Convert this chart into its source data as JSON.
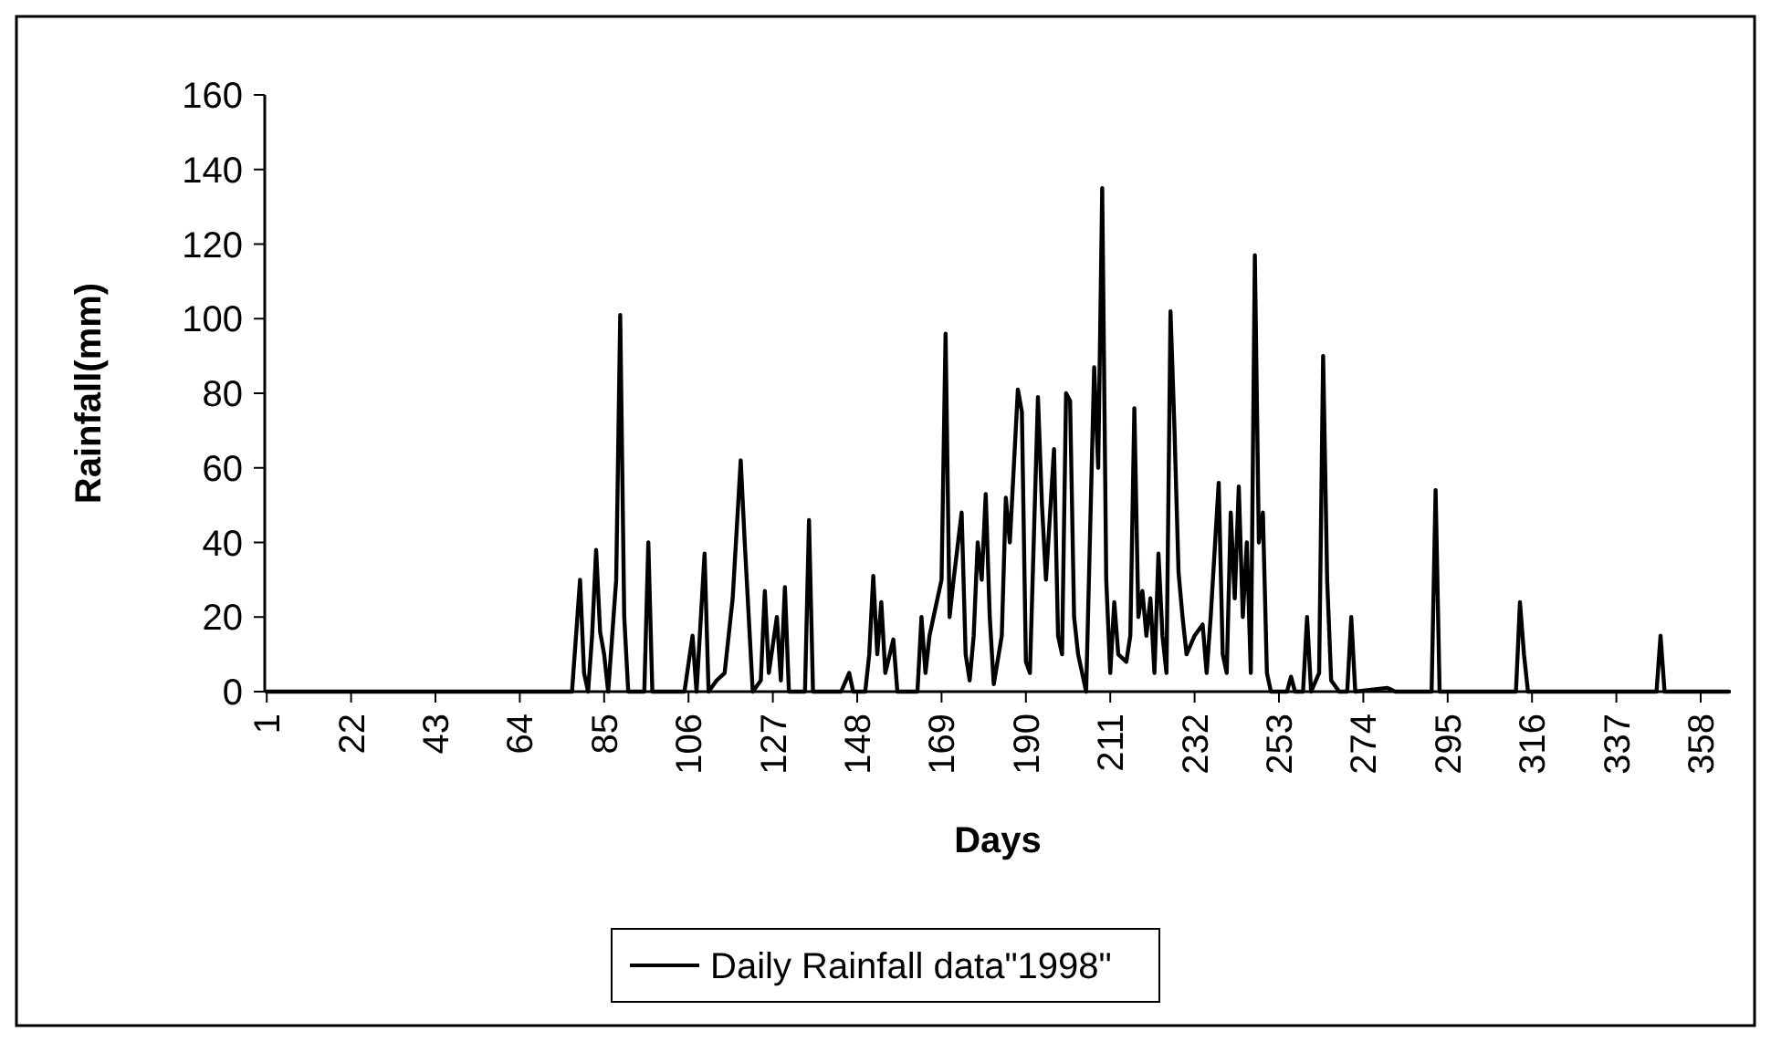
{
  "chart_data": {
    "type": "line",
    "xlabel": "Days",
    "ylabel": "Rainfall(mm)",
    "legend": "bottom",
    "marker": "none",
    "line_style": "solid",
    "grid": false,
    "xlim": [
      0.5,
      365.5
    ],
    "xticks": [
      1,
      22,
      43,
      64,
      85,
      106,
      127,
      148,
      169,
      190,
      211,
      232,
      253,
      274,
      295,
      316,
      337,
      358
    ],
    "ylim": [
      0,
      160
    ],
    "yticks": [
      0,
      20,
      40,
      60,
      80,
      100,
      120,
      140,
      160
    ],
    "series": [
      {
        "name": "Daily Rainfall data\"1998\"",
        "color": "#000000",
        "x": [
          1,
          77,
          79,
          80,
          81,
          82,
          83,
          84,
          85,
          86,
          88,
          89,
          90,
          91,
          95,
          96,
          97,
          105,
          107,
          108,
          110,
          111,
          113,
          115,
          117,
          119,
          120,
          122,
          124,
          125,
          126,
          128,
          129,
          130,
          131,
          135,
          136,
          137,
          144,
          146,
          147,
          150,
          151,
          152,
          153,
          154,
          155,
          157,
          158,
          163,
          164,
          165,
          166,
          168,
          169,
          170,
          171,
          172,
          174,
          175,
          176,
          177,
          178,
          179,
          180,
          181,
          182,
          184,
          185,
          186,
          188,
          189,
          190,
          191,
          193,
          194,
          195,
          197,
          198,
          199,
          200,
          201,
          202,
          203,
          205,
          207,
          208,
          209,
          210,
          211,
          212,
          213,
          215,
          216,
          217,
          218,
          219,
          220,
          221,
          222,
          223,
          224,
          225,
          226,
          227,
          228,
          229,
          230,
          232,
          234,
          235,
          236,
          238,
          239,
          240,
          241,
          242,
          243,
          244,
          245,
          246,
          247,
          248,
          249,
          250,
          251,
          255,
          256,
          257,
          259,
          260,
          261,
          263,
          264,
          265,
          266,
          268,
          270,
          271,
          272,
          280,
          282,
          291,
          292,
          293,
          312,
          313,
          314,
          315,
          347,
          348,
          349,
          365
        ],
        "values": [
          0,
          0,
          30,
          5,
          0,
          15,
          38,
          16,
          10,
          0,
          30,
          101,
          20,
          0,
          0,
          40,
          0,
          0,
          15,
          0,
          37,
          0,
          3,
          5,
          25,
          62,
          40,
          0,
          3,
          27,
          5,
          20,
          3,
          28,
          0,
          0,
          46,
          0,
          0,
          5,
          0,
          0,
          10,
          31,
          10,
          24,
          5,
          14,
          0,
          0,
          20,
          5,
          15,
          25,
          30,
          96,
          20,
          30,
          48,
          10,
          3,
          15,
          40,
          30,
          53,
          20,
          2,
          15,
          52,
          40,
          81,
          75,
          8,
          5,
          79,
          50,
          30,
          65,
          15,
          10,
          80,
          78,
          20,
          10,
          0,
          87,
          60,
          135,
          30,
          5,
          24,
          10,
          8,
          15,
          76,
          20,
          27,
          15,
          25,
          5,
          37,
          15,
          5,
          102,
          70,
          32,
          20,
          10,
          15,
          18,
          5,
          20,
          56,
          10,
          5,
          48,
          25,
          55,
          20,
          40,
          5,
          117,
          40,
          48,
          5,
          0,
          0,
          4,
          0,
          0,
          20,
          0,
          5,
          90,
          30,
          3,
          0,
          0,
          20,
          0,
          1,
          0,
          0,
          54,
          0,
          0,
          24,
          10,
          0,
          0,
          15,
          0,
          0
        ]
      }
    ]
  }
}
